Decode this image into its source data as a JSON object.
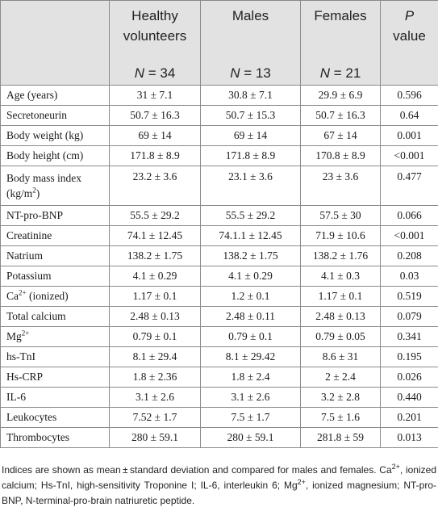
{
  "header": {
    "col1": "Healthy volunteers",
    "col2": "Males",
    "col3": "Females",
    "col4_italic": "P",
    "col4_rest": "value",
    "n_label": "N",
    "n1": " = 34",
    "n2": " = 13",
    "n3": " = 21"
  },
  "rows": [
    {
      "label": "Age (years)",
      "hv": "31 ± 7.1",
      "m": "30.8 ± 7.1",
      "f": "29.9 ± 6.9",
      "p": "0.596"
    },
    {
      "label": "Secretoneurin",
      "hv": "50.7 ± 16.3",
      "m": "50.7 ± 15.3",
      "f": "50.7 ± 16.3",
      "p": "0.64"
    },
    {
      "label": "Body weight (kg)",
      "hv": "69 ± 14",
      "m": "69 ± 14",
      "f": "67 ± 14",
      "p": "0.001"
    },
    {
      "label": "Body height (cm)",
      "hv": "171.8 ± 8.9",
      "m": "171.8 ± 8.9",
      "f": "170.8 ± 8.9",
      "p": "<0.001"
    },
    {
      "label_a": "Body mass index",
      "label_b": "(kg/m",
      "label_sup": "2",
      "label_c": ")",
      "hv": "23.2 ± 3.6",
      "m": "23.1 ± 3.6",
      "f": "23 ± 3.6",
      "p": "0.477"
    },
    {
      "label": "NT-pro-BNP",
      "hv": "55.5 ± 29.2",
      "m": "55.5 ± 29.2",
      "f": "57.5 ± 30",
      "p": "0.066"
    },
    {
      "label": "Creatinine",
      "hv": "74.1 ± 12.45",
      "m": "74.1.1 ± 12.45",
      "f": "71.9 ± 10.6",
      "p": "<0.001"
    },
    {
      "label": "Natrium",
      "hv": "138.2 ± 1.75",
      "m": "138.2 ± 1.75",
      "f": "138.2 ± 1.76",
      "p": "0.208"
    },
    {
      "label": "Potassium",
      "hv": "4.1 ± 0.29",
      "m": "4.1 ± 0.29",
      "f": "4.1 ± 0.3",
      "p": "0.03"
    },
    {
      "label_a": "Ca",
      "label_sup": "2+",
      "label_c": " (ionized)",
      "hv": "1.17 ± 0.1",
      "m": "1.2 ± 0.1",
      "f": "1.17 ± 0.1",
      "p": "0.519"
    },
    {
      "label": "Total calcium",
      "hv": "2.48 ± 0.13",
      "m": "2.48 ± 0.11",
      "f": "2.48 ± 0.13",
      "p": "0.079"
    },
    {
      "label_a": "Mg",
      "label_sup": "2+",
      "hv": "0.79 ± 0.1",
      "m": "0.79 ± 0.1",
      "f": "0.79 ± 0.05",
      "p": "0.341"
    },
    {
      "label": "hs-TnI",
      "hv": "8.1 ± 29.4",
      "m": "8.1 ± 29.42",
      "f": "8.6 ± 31",
      "p": "0.195"
    },
    {
      "label": "Hs-CRP",
      "hv": "1.8 ± 2.36",
      "m": "1.8 ± 2.4",
      "f": "2 ± 2.4",
      "p": "0.026"
    },
    {
      "label": "IL-6",
      "hv": "3.1 ± 2.6",
      "m": "3.1 ± 2.6",
      "f": "3.2 ± 2.8",
      "p": "0.440"
    },
    {
      "label": "Leukocytes",
      "hv": "7.52 ± 1.7",
      "m": "7.5 ± 1.7",
      "f": "7.5 ± 1.6",
      "p": "0.201"
    },
    {
      "label": "Thrombocytes",
      "hv": "280 ± 59.1",
      "m": "280 ± 59.1",
      "f": "281.8 ± 59",
      "p": "0.013"
    }
  ],
  "note": {
    "t1": "Indices are shown as mean ± standard deviation and compared for males and females. Ca",
    "s1": "2+",
    "t2": ", ionized calcium; Hs-TnI, high-sensitivity Troponine I; IL-6, interleukin 6; Mg",
    "s2": "2+",
    "t3": ", ionized magnesium; NT-pro-BNP, N-terminal-pro-brain natriuretic peptide."
  }
}
